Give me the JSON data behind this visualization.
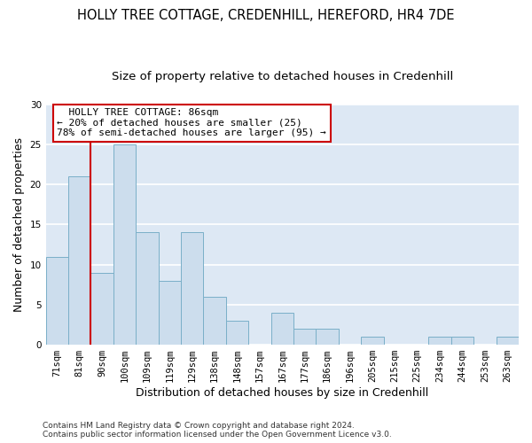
{
  "title": "HOLLY TREE COTTAGE, CREDENHILL, HEREFORD, HR4 7DE",
  "subtitle": "Size of property relative to detached houses in Credenhill",
  "xlabel": "Distribution of detached houses by size in Credenhill",
  "ylabel": "Number of detached properties",
  "bar_labels": [
    "71sqm",
    "81sqm",
    "90sqm",
    "100sqm",
    "109sqm",
    "119sqm",
    "129sqm",
    "138sqm",
    "148sqm",
    "157sqm",
    "167sqm",
    "177sqm",
    "186sqm",
    "196sqm",
    "205sqm",
    "215sqm",
    "225sqm",
    "234sqm",
    "244sqm",
    "253sqm",
    "263sqm"
  ],
  "bar_values": [
    11,
    21,
    9,
    25,
    14,
    8,
    14,
    6,
    3,
    0,
    4,
    2,
    2,
    0,
    1,
    0,
    0,
    1,
    1,
    0,
    1
  ],
  "bar_color": "#ccdded",
  "bar_edge_color": "#7aafc8",
  "background_color": "#dde8f4",
  "grid_color": "#ffffff",
  "ylim": [
    0,
    30
  ],
  "yticks": [
    0,
    5,
    10,
    15,
    20,
    25,
    30
  ],
  "vline_x": 1.5,
  "vline_color": "#cc0000",
  "annotation_text": "  HOLLY TREE COTTAGE: 86sqm  \n← 20% of detached houses are smaller (25)\n78% of semi-detached houses are larger (95) →",
  "annotation_box_color": "#ffffff",
  "annotation_box_edge": "#cc0000",
  "footer": "Contains HM Land Registry data © Crown copyright and database right 2024.\nContains public sector information licensed under the Open Government Licence v3.0.",
  "title_fontsize": 10.5,
  "subtitle_fontsize": 9.5,
  "xlabel_fontsize": 9,
  "ylabel_fontsize": 9,
  "tick_fontsize": 7.5,
  "annotation_fontsize": 8,
  "footer_fontsize": 6.5
}
